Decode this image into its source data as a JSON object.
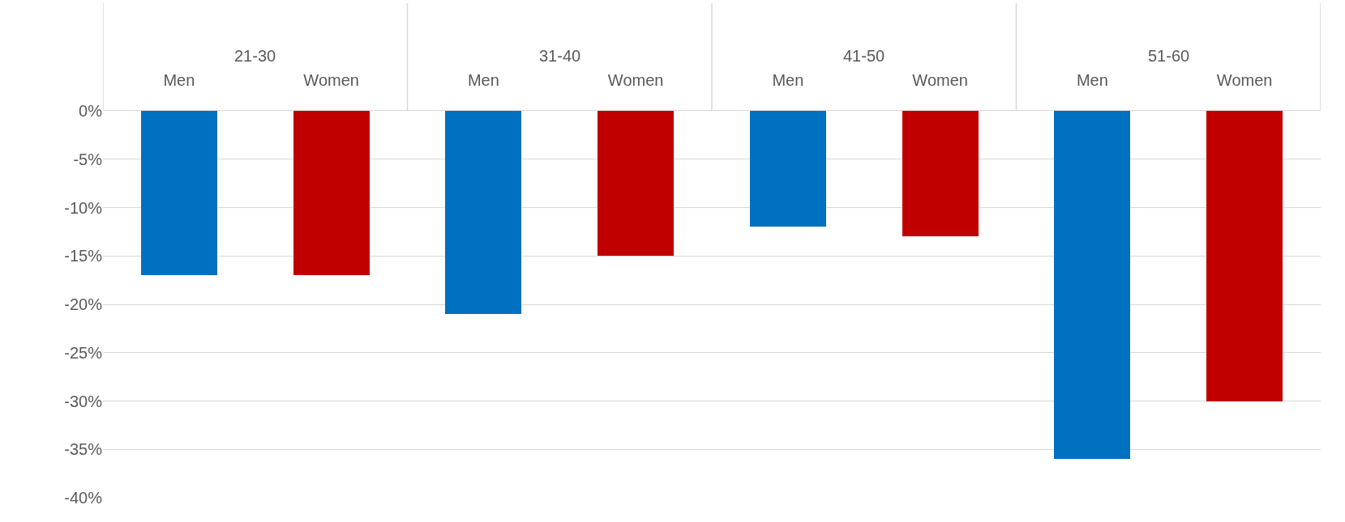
{
  "chart_data": {
    "type": "bar",
    "categories": [
      "Men",
      "Women",
      "Men",
      "Women",
      "Men",
      "Women",
      "Men",
      "Women"
    ],
    "annotations": [
      "21-30",
      "31-40",
      "41-50",
      "51-60"
    ],
    "values": [
      -17,
      -17,
      -21,
      -15,
      -12,
      -13,
      -36,
      -30
    ],
    "colors": [
      "#0070c0",
      "#c00000",
      "#0070c0",
      "#c00000",
      "#0070c0",
      "#c00000",
      "#0070c0",
      "#c00000"
    ],
    "ylim": [
      -40,
      0
    ],
    "yticks": [
      {
        "value": 0,
        "label": "0%"
      },
      {
        "value": -5,
        "label": "-5%"
      },
      {
        "value": -10,
        "label": "-10%"
      },
      {
        "value": -15,
        "label": "-15%"
      },
      {
        "value": -20,
        "label": "-20%"
      },
      {
        "value": -25,
        "label": "-25%"
      },
      {
        "value": -30,
        "label": "-30%"
      },
      {
        "value": -35,
        "label": "-35%"
      },
      {
        "value": -40,
        "label": "-40%"
      }
    ],
    "grid": "y"
  }
}
